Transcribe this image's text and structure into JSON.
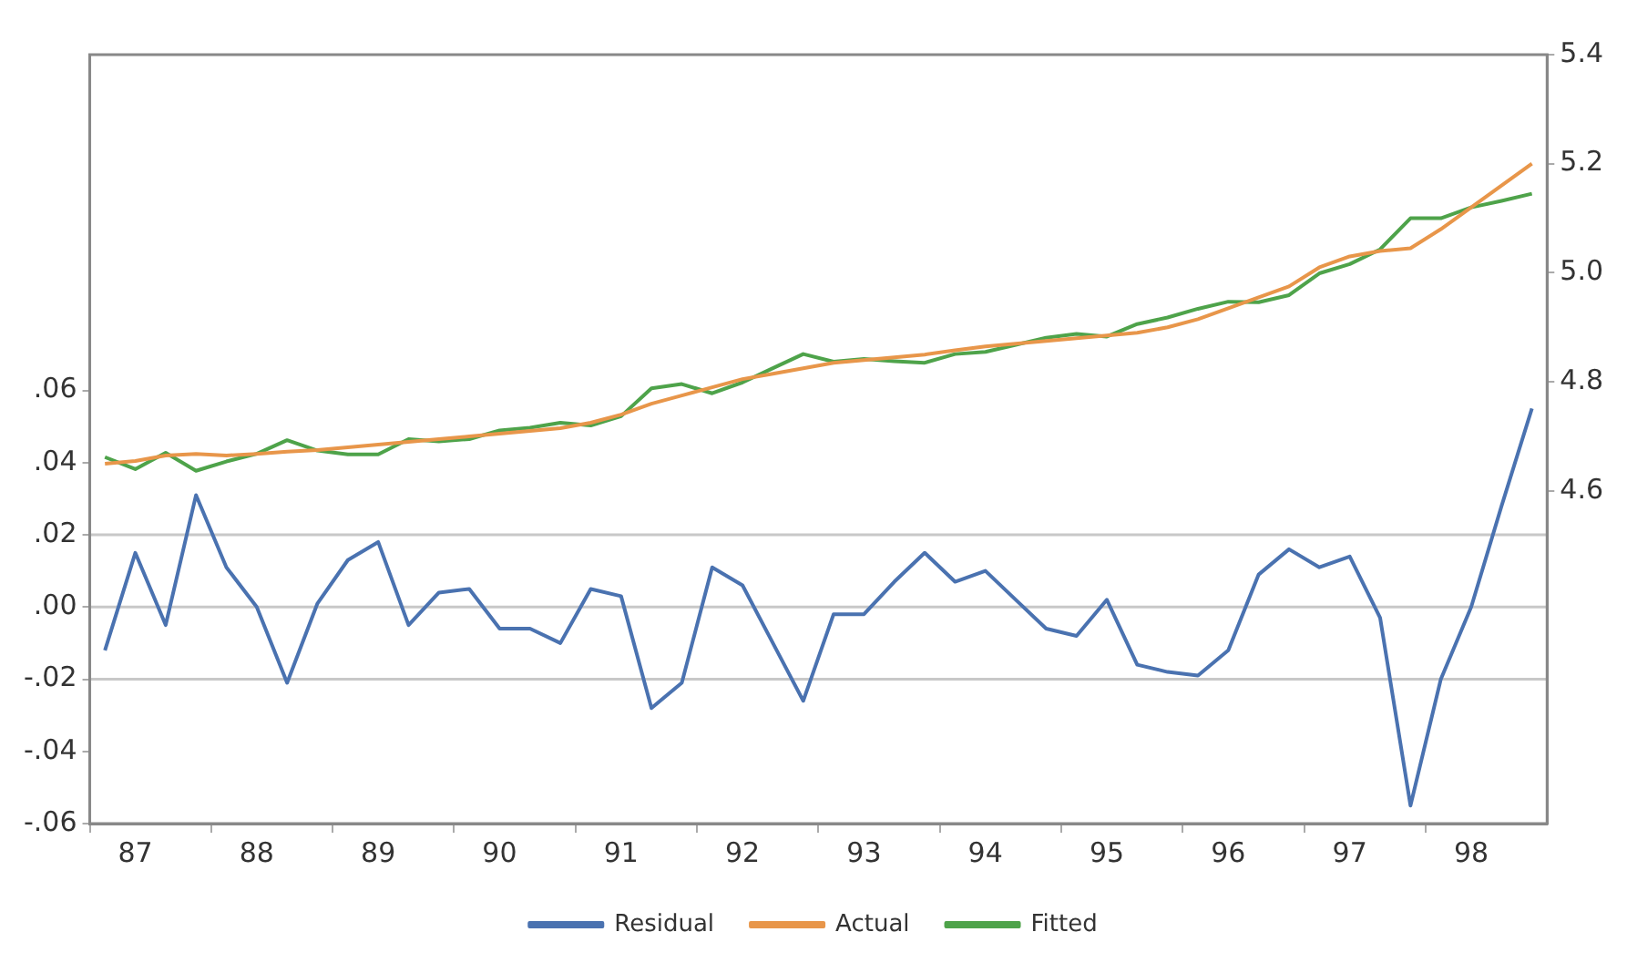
{
  "chart_data": {
    "type": "line",
    "categories": [
      null,
      "87",
      null,
      null,
      null,
      "88",
      null,
      null,
      null,
      "89",
      null,
      null,
      null,
      "90",
      null,
      null,
      null,
      "91",
      null,
      null,
      null,
      "92",
      null,
      null,
      null,
      "93",
      null,
      null,
      null,
      "94",
      null,
      null,
      null,
      "95",
      null,
      null,
      null,
      "96",
      null,
      null,
      null,
      "97",
      null,
      null,
      null,
      "98",
      null,
      null
    ],
    "series": [
      {
        "name": "Residual",
        "color": "#4a72b0",
        "values": [
          -0.012,
          0.015,
          -0.005,
          0.031,
          0.011,
          0.0,
          -0.021,
          0.001,
          0.013,
          0.018,
          -0.005,
          0.004,
          0.005,
          -0.006,
          -0.006,
          -0.01,
          0.005,
          0.003,
          -0.028,
          -0.021,
          0.011,
          0.006,
          -0.01,
          -0.026,
          -0.002,
          -0.002,
          0.007,
          0.015,
          0.007,
          0.01,
          0.002,
          -0.006,
          -0.008,
          0.002,
          -0.016,
          -0.018,
          -0.019,
          -0.012,
          0.009,
          0.016,
          0.011,
          0.014,
          -0.003,
          -0.055,
          -0.02,
          0.0,
          0.028,
          0.055
        ]
      },
      {
        "name": "Actual",
        "color": "#e8964a",
        "axis": "y2",
        "values": [
          4.65,
          4.655,
          4.665,
          4.668,
          4.665,
          4.668,
          4.672,
          4.675,
          4.68,
          4.685,
          4.69,
          4.695,
          4.7,
          4.705,
          4.71,
          4.715,
          4.725,
          4.74,
          4.76,
          4.775,
          4.79,
          4.805,
          4.815,
          4.825,
          4.835,
          4.84,
          4.845,
          4.85,
          4.858,
          4.865,
          4.87,
          4.875,
          4.88,
          4.885,
          4.89,
          4.9,
          4.915,
          4.935,
          4.955,
          4.975,
          5.01,
          5.03,
          5.04,
          5.045,
          5.08,
          5.12,
          5.16,
          5.2
        ]
      },
      {
        "name": "Fitted",
        "color": "#4ea34a",
        "axis": "y2",
        "values": [
          4.662,
          4.64,
          4.67,
          4.637,
          4.654,
          4.668,
          4.693,
          4.674,
          4.667,
          4.667,
          4.695,
          4.691,
          4.695,
          4.711,
          4.716,
          4.725,
          4.72,
          4.737,
          4.788,
          4.796,
          4.779,
          4.799,
          4.825,
          4.851,
          4.837,
          4.842,
          4.838,
          4.835,
          4.851,
          4.855,
          4.868,
          4.881,
          4.888,
          4.883,
          4.906,
          4.918,
          4.934,
          4.947,
          4.946,
          4.959,
          4.999,
          5.016,
          5.043,
          5.1,
          5.1,
          5.12,
          5.132,
          5.145
        ]
      }
    ],
    "ylim": [
      -0.06,
      0.153
    ],
    "yticks": [
      {
        "value": -0.06,
        "label": "-.06"
      },
      {
        "value": -0.04,
        "label": "-.04"
      },
      {
        "value": -0.02,
        "label": "-.02"
      },
      {
        "value": 0,
        "label": ".00"
      },
      {
        "value": 0.02,
        "label": ".02"
      },
      {
        "value": 0.04,
        "label": ".04"
      },
      {
        "value": 0.06,
        "label": ".06"
      }
    ],
    "y2lim": [
      3.99,
      5.4
    ],
    "y2ticks": [
      4.6,
      4.8,
      {
        "value": 5.0,
        "label": "5.0"
      },
      5.2,
      5.4
    ],
    "ref_lines": [
      {
        "axis": "y",
        "value": 0.02,
        "color": "#c8c8c8"
      },
      {
        "axis": "y",
        "value": 0,
        "color": "#c8c8c8"
      },
      {
        "axis": "y",
        "value": -0.02,
        "color": "#c8c8c8"
      }
    ],
    "grid": false,
    "legend": "bottom",
    "marker": "none",
    "line_style": "solid"
  }
}
